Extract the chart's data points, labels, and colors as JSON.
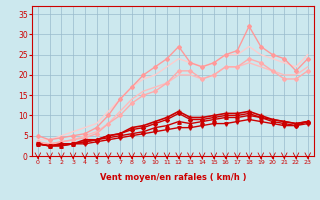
{
  "x": [
    0,
    1,
    2,
    3,
    4,
    5,
    6,
    7,
    8,
    9,
    10,
    11,
    12,
    13,
    14,
    15,
    16,
    17,
    18,
    19,
    20,
    21,
    22,
    23
  ],
  "lines": [
    {
      "y": [
        3,
        2.5,
        2.5,
        3,
        3,
        3.5,
        4,
        4.5,
        5,
        5.5,
        6,
        6.5,
        7,
        7,
        7.5,
        8,
        8,
        8.5,
        9,
        8.5,
        8,
        7.5,
        7.5,
        8
      ],
      "color": "#cc0000",
      "lw": 1.0,
      "marker": "v",
      "ms": 2.5,
      "zorder": 5
    },
    {
      "y": [
        3,
        2.5,
        2.5,
        3,
        3.5,
        4,
        4.5,
        5,
        5.5,
        6,
        7,
        7.5,
        8.5,
        8,
        8.5,
        9,
        9.5,
        9.5,
        10,
        9.5,
        9,
        8.5,
        8,
        8.5
      ],
      "color": "#cc0000",
      "lw": 1.0,
      "marker": "^",
      "ms": 2.5,
      "zorder": 5
    },
    {
      "y": [
        3,
        2.5,
        3,
        3,
        3.5,
        4,
        5,
        5.5,
        6.5,
        7,
        8,
        9,
        10.5,
        9,
        9,
        9.5,
        10,
        10,
        10.5,
        9.5,
        8.5,
        8,
        7.5,
        8.5
      ],
      "color": "#cc0000",
      "lw": 1.0,
      "marker": "D",
      "ms": 2.0,
      "zorder": 5
    },
    {
      "y": [
        3,
        2.5,
        3,
        3,
        4,
        4,
        5,
        5.5,
        7,
        7.5,
        8.5,
        9.5,
        11,
        9.5,
        9.5,
        10,
        10.5,
        10.5,
        11,
        10,
        9,
        8.5,
        8,
        8.5
      ],
      "color": "#cc0000",
      "lw": 1.2,
      "marker": "+",
      "ms": 3,
      "zorder": 5
    },
    {
      "y": [
        3.5,
        3,
        3.5,
        4,
        4.5,
        5.5,
        8,
        10,
        13,
        15,
        16,
        18,
        21,
        21,
        19,
        20,
        22,
        22,
        24,
        23,
        21,
        19,
        19,
        21
      ],
      "color": "#ffaaaa",
      "lw": 1.0,
      "marker": "D",
      "ms": 2.0,
      "zorder": 3
    },
    {
      "y": [
        5,
        4,
        4.5,
        5,
        5.5,
        7,
        10,
        14,
        17,
        20,
        22,
        24,
        27,
        23,
        22,
        23,
        25,
        26,
        32,
        27,
        25,
        24,
        21,
        24
      ],
      "color": "#ff9999",
      "lw": 1.0,
      "marker": "D",
      "ms": 2.0,
      "zorder": 4
    },
    {
      "y": [
        3,
        3,
        3.5,
        4,
        5,
        6,
        8,
        11,
        14,
        16,
        17,
        18,
        20,
        20,
        19,
        20,
        22,
        22,
        23,
        22,
        21,
        20,
        20,
        22
      ],
      "color": "#ffbbbb",
      "lw": 1.0,
      "marker": null,
      "ms": 0,
      "zorder": 2
    },
    {
      "y": [
        4,
        4,
        5,
        6,
        7,
        8,
        11,
        14,
        17,
        19,
        20,
        22,
        24,
        23,
        22,
        23,
        25,
        25,
        27,
        25,
        24,
        23,
        22,
        25
      ],
      "color": "#ffcccc",
      "lw": 1.0,
      "marker": null,
      "ms": 0,
      "zorder": 2
    }
  ],
  "xlabel": "Vent moyen/en rafales ( km/h )",
  "xlim": [
    -0.5,
    23.5
  ],
  "ylim": [
    0,
    37
  ],
  "yticks": [
    0,
    5,
    10,
    15,
    20,
    25,
    30,
    35
  ],
  "xticks": [
    0,
    1,
    2,
    3,
    4,
    5,
    6,
    7,
    8,
    9,
    10,
    11,
    12,
    13,
    14,
    15,
    16,
    17,
    18,
    19,
    20,
    21,
    22,
    23
  ],
  "bg_color": "#cce8ee",
  "grid_color": "#99bbcc",
  "tick_color": "#cc0000",
  "label_color": "#cc0000"
}
